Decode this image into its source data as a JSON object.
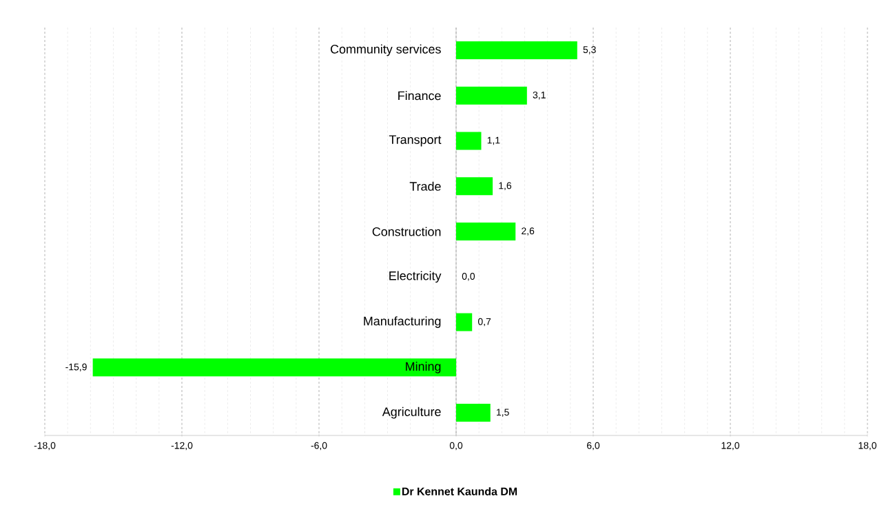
{
  "chart_data": {
    "type": "bar",
    "orientation": "horizontal",
    "categories": [
      "Community services",
      "Finance",
      "Transport",
      "Trade",
      "Construction",
      "Electricity",
      "Manufacturing",
      "Mining",
      "Agriculture"
    ],
    "series": [
      {
        "name": "Dr Kennet Kaunda DM",
        "color": "#00ff00",
        "values": [
          5.3,
          3.1,
          1.1,
          1.6,
          2.6,
          0.0,
          0.7,
          -15.9,
          1.5
        ],
        "value_labels": [
          "5,3",
          "3,1",
          "1,1",
          "1,6",
          "2,6",
          "0,0",
          "0,7",
          "-15,9",
          "1,5"
        ]
      }
    ],
    "xlim": [
      -18,
      18
    ],
    "xticks": [
      {
        "value": -18,
        "label": "-18,0"
      },
      {
        "value": -12,
        "label": "-12,0"
      },
      {
        "value": -6,
        "label": "-6,0"
      },
      {
        "value": 0,
        "label": "0,0"
      },
      {
        "value": 6,
        "label": "6,0"
      },
      {
        "value": 12,
        "label": "12,0"
      },
      {
        "value": 18,
        "label": "18,0"
      }
    ],
    "grid": "x",
    "legend": "bottom"
  }
}
